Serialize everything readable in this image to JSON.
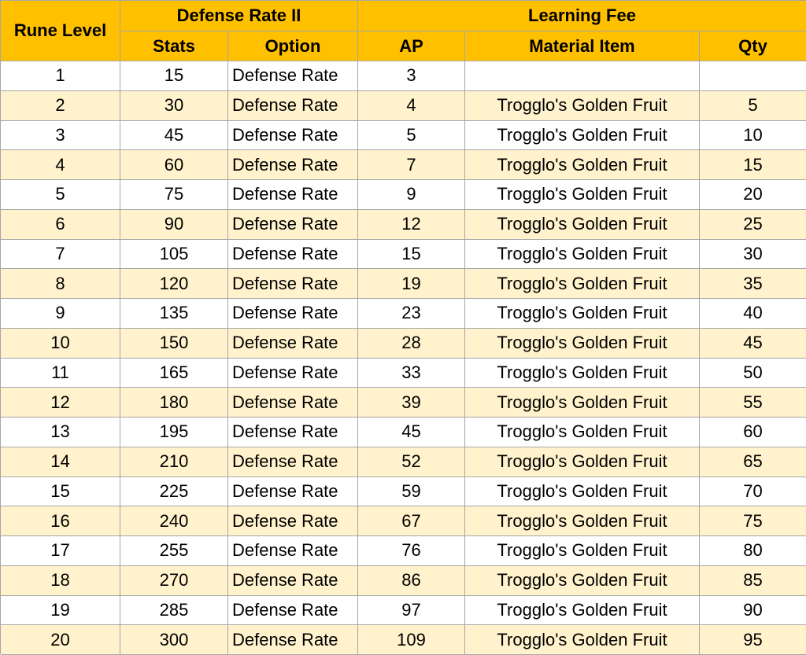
{
  "header": {
    "rune_level": "Rune Level",
    "group1": "Defense Rate II",
    "group2": "Learning Fee",
    "columns": [
      "Stats",
      "Option",
      "AP",
      "Material Item",
      "Qty"
    ]
  },
  "table": {
    "rows": [
      [
        1,
        15,
        "Defense Rate",
        3,
        null,
        null
      ],
      [
        2,
        30,
        "Defense Rate",
        4,
        "Trogglo's Golden Fruit",
        5
      ],
      [
        3,
        45,
        "Defense Rate",
        5,
        "Trogglo's Golden Fruit",
        10
      ],
      [
        4,
        60,
        "Defense Rate",
        7,
        "Trogglo's Golden Fruit",
        15
      ],
      [
        5,
        75,
        "Defense Rate",
        9,
        "Trogglo's Golden Fruit",
        20
      ],
      [
        6,
        90,
        "Defense Rate",
        12,
        "Trogglo's Golden Fruit",
        25
      ],
      [
        7,
        105,
        "Defense Rate",
        15,
        "Trogglo's Golden Fruit",
        30
      ],
      [
        8,
        120,
        "Defense Rate",
        19,
        "Trogglo's Golden Fruit",
        35
      ],
      [
        9,
        135,
        "Defense Rate",
        23,
        "Trogglo's Golden Fruit",
        40
      ],
      [
        10,
        150,
        "Defense Rate",
        28,
        "Trogglo's Golden Fruit",
        45
      ],
      [
        11,
        165,
        "Defense Rate",
        33,
        "Trogglo's Golden Fruit",
        50
      ],
      [
        12,
        180,
        "Defense Rate",
        39,
        "Trogglo's Golden Fruit",
        55
      ],
      [
        13,
        195,
        "Defense Rate",
        45,
        "Trogglo's Golden Fruit",
        60
      ],
      [
        14,
        210,
        "Defense Rate",
        52,
        "Trogglo's Golden Fruit",
        65
      ],
      [
        15,
        225,
        "Defense Rate",
        59,
        "Trogglo's Golden Fruit",
        70
      ],
      [
        16,
        240,
        "Defense Rate",
        67,
        "Trogglo's Golden Fruit",
        75
      ],
      [
        17,
        255,
        "Defense Rate",
        76,
        "Trogglo's Golden Fruit",
        80
      ],
      [
        18,
        270,
        "Defense Rate",
        86,
        "Trogglo's Golden Fruit",
        85
      ],
      [
        19,
        285,
        "Defense Rate",
        97,
        "Trogglo's Golden Fruit",
        90
      ],
      [
        20,
        300,
        "Defense Rate",
        109,
        "Trogglo's Golden Fruit",
        95
      ]
    ]
  }
}
